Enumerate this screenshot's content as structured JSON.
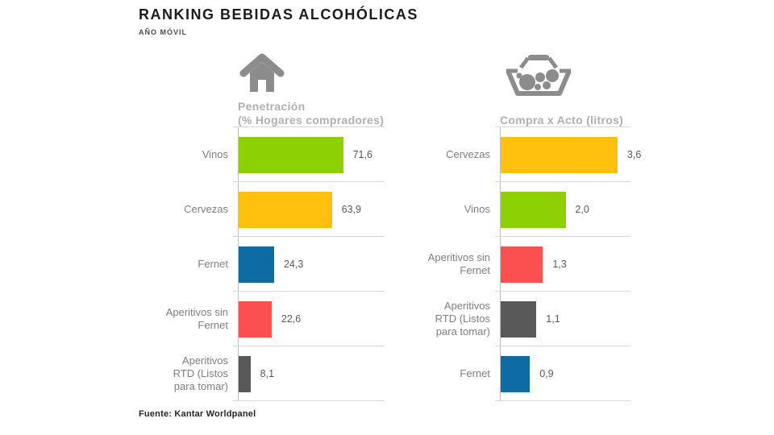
{
  "page": {
    "title": "RANKING BEBIDAS ALCOHÓLICAS",
    "subtitle": "AÑO MÓVIL",
    "source": "Fuente: Kantar Worldpanel"
  },
  "colors": {
    "vinos": "#8DD104",
    "cervezas": "#FFC10E",
    "fernet": "#0F6BA3",
    "aperitivos_sin_fernet": "#FC5050",
    "aperitivos_rtd": "#595959",
    "axis_line": "#BFBFBF",
    "grid_line": "#D9D9D9",
    "header_text": "#B0B0B0",
    "icon_gray": "#8C8C8C",
    "category_text": "#7F7F7F",
    "value_text": "#595959"
  },
  "icons": {
    "left_chart": "house-icon",
    "right_chart": "basket-icon"
  },
  "chart_data": [
    {
      "type": "bar",
      "orientation": "horizontal",
      "title": "Penetración",
      "subtitle": "(% Hogares compradores)",
      "icon": "house-icon",
      "categories": [
        "Vinos",
        "Cervezas",
        "Fernet",
        "Aperitivos sin\nFernet",
        "Aperitivos\nRTD (Listos\npara tomar)"
      ],
      "values": [
        71.6,
        63.9,
        24.3,
        22.6,
        8.1
      ],
      "value_labels": [
        "71,6",
        "63,9",
        "24,3",
        "22,6",
        "8,1"
      ],
      "bar_colors": [
        "#8DD104",
        "#FFC10E",
        "#0F6BA3",
        "#FC5050",
        "#595959"
      ],
      "xlim": [
        0,
        100
      ],
      "grid": "row-separators",
      "legend": "none"
    },
    {
      "type": "bar",
      "orientation": "horizontal",
      "title": "Compra x Acto (litros)",
      "subtitle": "",
      "icon": "basket-icon",
      "categories": [
        "Cervezas",
        "Vinos",
        "Aperitivos sin\nFernet",
        "Aperitivos\nRTD  (Listos\npara tomar)",
        "Fernet"
      ],
      "values": [
        3.6,
        2.0,
        1.3,
        1.1,
        0.9
      ],
      "value_labels": [
        "3,6",
        "2,0",
        "1,3",
        "1,1",
        "0,9"
      ],
      "bar_colors": [
        "#FFC10E",
        "#8DD104",
        "#FC5050",
        "#595959",
        "#0F6BA3"
      ],
      "xlim": [
        0,
        4
      ],
      "grid": "row-separators",
      "legend": "none"
    }
  ]
}
